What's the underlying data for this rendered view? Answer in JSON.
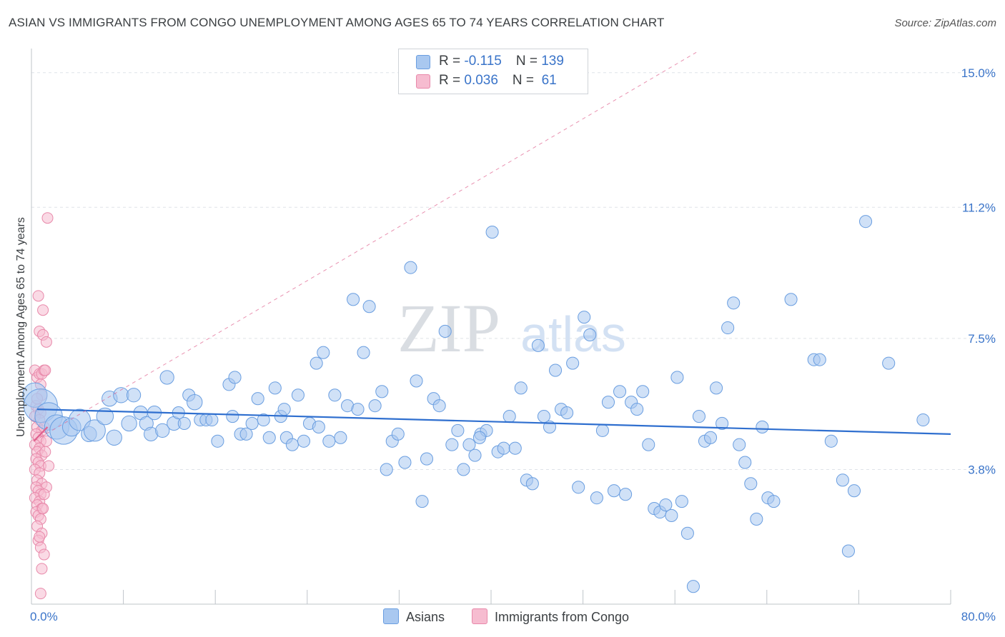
{
  "title": "ASIAN VS IMMIGRANTS FROM CONGO UNEMPLOYMENT AMONG AGES 65 TO 74 YEARS CORRELATION CHART",
  "source": "Source: ZipAtlas.com",
  "watermark": {
    "zip": "ZIP",
    "atlas": "atlas"
  },
  "legend": {
    "asians": {
      "r_label": "R = ",
      "r_value": "-0.115",
      "n_label": "N = ",
      "n_value": "139"
    },
    "congo": {
      "r_label": "R = ",
      "r_value": "0.036",
      "n_label": "N = ",
      "n_value": " 61"
    }
  },
  "bottom_legend": {
    "asians": "Asians",
    "congo": "Immigrants from Congo"
  },
  "colors": {
    "asian_fill": "#a9c8f0",
    "asian_stroke": "#6a9ee0",
    "asian_line": "#2f6fcf",
    "congo_fill": "#f6bcd0",
    "congo_stroke": "#e889aa",
    "congo_line": "#e0628f",
    "tick_text": "#3a74c9",
    "grid": "#dfe3e8"
  },
  "chart_data": {
    "type": "scatter",
    "title": "ASIAN VS IMMIGRANTS FROM CONGO UNEMPLOYMENT AMONG AGES 65 TO 74 YEARS CORRELATION CHART",
    "xlabel": "",
    "ylabel": "Unemployment Among Ages 65 to 74 years",
    "xlim": [
      0,
      80
    ],
    "ylim": [
      0,
      15.6
    ],
    "x_tick_labels": [
      {
        "value": 0,
        "label": "0.0%"
      },
      {
        "value": 80,
        "label": "80.0%"
      }
    ],
    "y_ticks": [
      {
        "value": 3.8,
        "label": "3.8%"
      },
      {
        "value": 7.5,
        "label": "7.5%"
      },
      {
        "value": 11.2,
        "label": "11.2%"
      },
      {
        "value": 15.0,
        "label": "15.0%"
      }
    ],
    "series": [
      {
        "name": "Asians",
        "r": -0.115,
        "n": 139,
        "trend": {
          "x": [
            0.5,
            80
          ],
          "y": [
            5.5,
            4.8
          ]
        },
        "points": [
          [
            0.3,
            5.9,
            1.6
          ],
          [
            0.8,
            5.6,
            2.2
          ],
          [
            1.5,
            5.3,
            1.8
          ],
          [
            2.2,
            5.0,
            1.6
          ],
          [
            2.8,
            4.9,
            1.8
          ],
          [
            3.5,
            5.0,
            1.2
          ],
          [
            4.2,
            5.2,
            1.4
          ],
          [
            5.0,
            4.8,
            1.0
          ],
          [
            5.5,
            4.9,
            1.4
          ],
          [
            6.4,
            5.3,
            1.1
          ],
          [
            6.8,
            5.8,
            1.0
          ],
          [
            7.2,
            4.7,
            1.0
          ],
          [
            7.8,
            5.9,
            1.0
          ],
          [
            8.5,
            5.1,
            1.0
          ],
          [
            8.9,
            5.9,
            0.9
          ],
          [
            9.5,
            5.4,
            0.9
          ],
          [
            10.0,
            5.1,
            0.9
          ],
          [
            10.4,
            4.8,
            0.9
          ],
          [
            10.7,
            5.4,
            0.9
          ],
          [
            11.4,
            4.9,
            0.9
          ],
          [
            11.8,
            6.4,
            0.9
          ],
          [
            12.4,
            5.1,
            0.9
          ],
          [
            12.8,
            5.4,
            0.8
          ],
          [
            13.3,
            5.1,
            0.8
          ],
          [
            13.7,
            5.9,
            0.8
          ],
          [
            14.2,
            5.7,
            1.0
          ],
          [
            14.7,
            5.2,
            0.8
          ],
          [
            15.2,
            5.2,
            0.8
          ],
          [
            15.7,
            5.2,
            0.8
          ],
          [
            16.2,
            4.6,
            0.8
          ],
          [
            17.2,
            6.2,
            0.8
          ],
          [
            17.7,
            6.4,
            0.8
          ],
          [
            18.2,
            4.8,
            0.8
          ],
          [
            18.7,
            4.8,
            0.8
          ],
          [
            19.2,
            5.1,
            0.8
          ],
          [
            19.7,
            5.8,
            0.8
          ],
          [
            20.2,
            5.2,
            0.8
          ],
          [
            20.7,
            4.7,
            0.8
          ],
          [
            21.2,
            6.1,
            0.8
          ],
          [
            21.7,
            5.3,
            0.8
          ],
          [
            22.2,
            4.7,
            0.8
          ],
          [
            22.7,
            4.5,
            0.8
          ],
          [
            23.2,
            5.9,
            0.8
          ],
          [
            23.7,
            4.6,
            0.8
          ],
          [
            24.2,
            5.1,
            0.8
          ],
          [
            24.8,
            6.8,
            0.8
          ],
          [
            25.4,
            7.1,
            0.8
          ],
          [
            25.9,
            4.6,
            0.8
          ],
          [
            26.4,
            5.9,
            0.8
          ],
          [
            26.9,
            4.7,
            0.8
          ],
          [
            27.5,
            5.6,
            0.8
          ],
          [
            28.0,
            8.6,
            0.8
          ],
          [
            28.4,
            5.5,
            0.8
          ],
          [
            28.9,
            7.1,
            0.8
          ],
          [
            29.4,
            8.4,
            0.8
          ],
          [
            29.9,
            5.6,
            0.8
          ],
          [
            30.5,
            6.0,
            0.8
          ],
          [
            30.9,
            3.8,
            0.8
          ],
          [
            31.4,
            4.6,
            0.8
          ],
          [
            31.9,
            4.8,
            0.8
          ],
          [
            32.5,
            4.0,
            0.8
          ],
          [
            33.0,
            9.5,
            0.8
          ],
          [
            33.5,
            6.3,
            0.8
          ],
          [
            34.0,
            2.9,
            0.8
          ],
          [
            34.4,
            4.1,
            0.8
          ],
          [
            35.0,
            5.8,
            0.8
          ],
          [
            35.5,
            5.6,
            0.8
          ],
          [
            36.0,
            7.7,
            0.8
          ],
          [
            36.6,
            4.5,
            0.8
          ],
          [
            37.1,
            4.9,
            0.8
          ],
          [
            37.6,
            3.8,
            0.8
          ],
          [
            38.1,
            4.5,
            0.8
          ],
          [
            38.6,
            4.2,
            0.8
          ],
          [
            39.1,
            4.8,
            0.8
          ],
          [
            39.6,
            4.9,
            0.8
          ],
          [
            40.1,
            10.5,
            0.8
          ],
          [
            40.6,
            4.3,
            0.8
          ],
          [
            41.1,
            4.4,
            0.8
          ],
          [
            41.6,
            5.3,
            0.8
          ],
          [
            42.1,
            4.4,
            0.8
          ],
          [
            42.6,
            6.1,
            0.8
          ],
          [
            43.1,
            3.5,
            0.8
          ],
          [
            43.6,
            3.4,
            0.8
          ],
          [
            44.1,
            7.3,
            0.8
          ],
          [
            44.6,
            5.3,
            0.8
          ],
          [
            45.1,
            5.0,
            0.8
          ],
          [
            45.6,
            6.6,
            0.8
          ],
          [
            46.1,
            5.5,
            0.8
          ],
          [
            46.6,
            5.4,
            0.8
          ],
          [
            47.1,
            6.8,
            0.8
          ],
          [
            47.6,
            3.3,
            0.8
          ],
          [
            48.1,
            8.1,
            0.8
          ],
          [
            48.6,
            7.6,
            0.8
          ],
          [
            49.2,
            3.0,
            0.8
          ],
          [
            49.7,
            4.9,
            0.8
          ],
          [
            50.2,
            5.7,
            0.8
          ],
          [
            50.7,
            3.2,
            0.8
          ],
          [
            51.2,
            6.0,
            0.8
          ],
          [
            51.7,
            3.1,
            0.8
          ],
          [
            52.2,
            5.7,
            0.8
          ],
          [
            52.7,
            5.5,
            0.8
          ],
          [
            53.2,
            6.0,
            0.8
          ],
          [
            53.7,
            4.5,
            0.8
          ],
          [
            54.2,
            2.7,
            0.8
          ],
          [
            54.7,
            2.6,
            0.8
          ],
          [
            55.2,
            2.8,
            0.8
          ],
          [
            55.7,
            2.5,
            0.8
          ],
          [
            56.2,
            6.4,
            0.8
          ],
          [
            56.6,
            2.9,
            0.8
          ],
          [
            57.1,
            2.0,
            0.8
          ],
          [
            57.6,
            0.5,
            0.8
          ],
          [
            58.1,
            5.3,
            0.8
          ],
          [
            58.6,
            4.6,
            0.8
          ],
          [
            59.1,
            4.7,
            0.8
          ],
          [
            59.6,
            6.1,
            0.8
          ],
          [
            60.1,
            5.1,
            0.8
          ],
          [
            60.6,
            7.8,
            0.8
          ],
          [
            61.1,
            8.5,
            0.8
          ],
          [
            61.6,
            4.5,
            0.8
          ],
          [
            62.1,
            4.0,
            0.8
          ],
          [
            62.6,
            3.4,
            0.8
          ],
          [
            63.1,
            2.4,
            0.8
          ],
          [
            63.6,
            5.0,
            0.8
          ],
          [
            64.1,
            3.0,
            0.8
          ],
          [
            64.6,
            2.9,
            0.8
          ],
          [
            66.1,
            8.6,
            0.8
          ],
          [
            68.1,
            6.9,
            0.8
          ],
          [
            68.6,
            6.9,
            0.8
          ],
          [
            70.6,
            3.5,
            0.8
          ],
          [
            71.1,
            1.5,
            0.8
          ],
          [
            71.6,
            3.2,
            0.8
          ],
          [
            72.6,
            10.8,
            0.8
          ],
          [
            74.6,
            6.8,
            0.8
          ],
          [
            77.6,
            5.2,
            0.8
          ],
          [
            69.6,
            4.6,
            0.8
          ],
          [
            39.0,
            4.7,
            0.8
          ],
          [
            25.0,
            5.0,
            0.8
          ],
          [
            17.5,
            5.3,
            0.8
          ],
          [
            22.0,
            5.5,
            0.8
          ]
        ]
      },
      {
        "name": "Immigrants from Congo",
        "r": 0.036,
        "n": 61,
        "trend": {
          "x": [
            0.2,
            1.4
          ],
          "y": [
            4.6,
            5.0
          ]
        },
        "points": [
          [
            0.3,
            6.6
          ],
          [
            0.5,
            6.4
          ],
          [
            0.7,
            6.5
          ],
          [
            0.9,
            6.5
          ],
          [
            1.1,
            6.6
          ],
          [
            0.4,
            5.6
          ],
          [
            0.6,
            5.5
          ],
          [
            0.8,
            5.4
          ],
          [
            0.3,
            5.3
          ],
          [
            0.7,
            5.2
          ],
          [
            0.5,
            5.0
          ],
          [
            0.9,
            4.9
          ],
          [
            0.4,
            4.8
          ],
          [
            0.6,
            4.7
          ],
          [
            0.8,
            4.6
          ],
          [
            0.3,
            4.5
          ],
          [
            0.7,
            4.4
          ],
          [
            0.5,
            4.3
          ],
          [
            0.9,
            4.2
          ],
          [
            0.4,
            4.1
          ],
          [
            0.6,
            4.0
          ],
          [
            0.8,
            3.9
          ],
          [
            0.3,
            3.8
          ],
          [
            0.7,
            3.7
          ],
          [
            1.5,
            3.9
          ],
          [
            0.5,
            3.5
          ],
          [
            0.9,
            3.4
          ],
          [
            0.4,
            3.3
          ],
          [
            1.3,
            3.3
          ],
          [
            0.6,
            3.2
          ],
          [
            0.8,
            3.1
          ],
          [
            0.3,
            3.0
          ],
          [
            0.7,
            2.9
          ],
          [
            0.5,
            2.8
          ],
          [
            0.9,
            2.7
          ],
          [
            0.4,
            2.6
          ],
          [
            0.6,
            2.5
          ],
          [
            0.8,
            2.4
          ],
          [
            0.5,
            2.2
          ],
          [
            0.9,
            2.0
          ],
          [
            0.6,
            1.8
          ],
          [
            0.8,
            1.6
          ],
          [
            1.1,
            1.4
          ],
          [
            0.9,
            1.0
          ],
          [
            0.8,
            0.3
          ],
          [
            0.7,
            7.7
          ],
          [
            1.0,
            7.6
          ],
          [
            1.3,
            7.4
          ],
          [
            0.6,
            8.7
          ],
          [
            1.0,
            8.3
          ],
          [
            1.4,
            10.9
          ],
          [
            1.2,
            6.6
          ],
          [
            0.9,
            5.9
          ],
          [
            1.1,
            5.0
          ],
          [
            1.2,
            4.3
          ],
          [
            1.1,
            3.1
          ],
          [
            1.0,
            2.7
          ],
          [
            0.7,
            1.9
          ],
          [
            1.3,
            4.6
          ],
          [
            0.5,
            5.8
          ],
          [
            0.8,
            6.2
          ]
        ]
      }
    ]
  }
}
